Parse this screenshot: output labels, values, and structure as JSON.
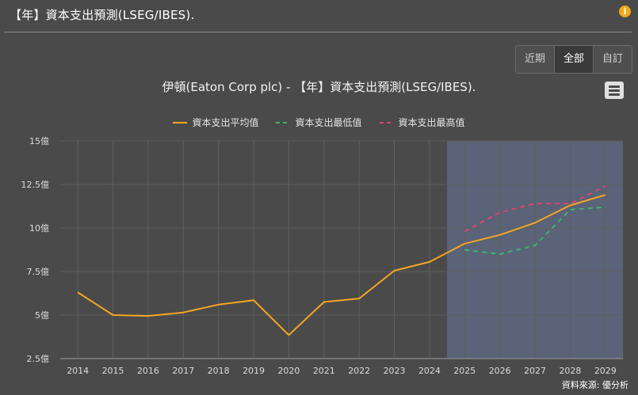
{
  "header": {
    "title": "【年】資本支出預測(LSEG/IBES).",
    "info_icon": "i"
  },
  "range_buttons": [
    {
      "label": "近期",
      "active": false
    },
    {
      "label": "全部",
      "active": true
    },
    {
      "label": "自訂",
      "active": false
    }
  ],
  "source_note": "資料來源: 優分析",
  "colors": {
    "background": "#4a4a4a",
    "plot_background": "#4a4a4a",
    "forecast_band": "#5a6378",
    "grid": "#5f5f5f",
    "average": "#f5a623",
    "low": "#3cb371",
    "high": "#e0436e"
  },
  "chart_data": {
    "type": "line",
    "title": "伊頓(Eaton Corp plc) - 【年】資本支出預測(LSEG/IBES).",
    "x": [
      "2014",
      "2015",
      "2016",
      "2017",
      "2018",
      "2019",
      "2020",
      "2021",
      "2022",
      "2023",
      "2024",
      "2025",
      "2026",
      "2027",
      "2028",
      "2029"
    ],
    "y_ticks": [
      "2.5億",
      "5億",
      "7.5億",
      "10億",
      "12.5億",
      "15億"
    ],
    "y_tick_values": [
      2.5,
      5,
      7.5,
      10,
      12.5,
      15
    ],
    "ylim": [
      2.5,
      15
    ],
    "grid": true,
    "legend_position": "top-center",
    "forecast_from": "2025",
    "series": [
      {
        "name": "資本支出平均值",
        "style": "solid",
        "values": [
          6.3,
          5.0,
          4.95,
          5.15,
          5.6,
          5.85,
          3.85,
          5.75,
          5.95,
          7.55,
          8.05,
          9.1,
          9.6,
          10.3,
          11.3,
          11.9
        ]
      },
      {
        "name": "資本支出最低值",
        "style": "dashed",
        "values": [
          null,
          null,
          null,
          null,
          null,
          null,
          null,
          null,
          null,
          null,
          null,
          8.75,
          8.5,
          9.0,
          11.05,
          11.2
        ]
      },
      {
        "name": "資本支出最高值",
        "style": "dashed",
        "values": [
          null,
          null,
          null,
          null,
          null,
          null,
          null,
          null,
          null,
          null,
          null,
          9.8,
          10.9,
          11.4,
          11.4,
          12.4
        ]
      }
    ]
  }
}
